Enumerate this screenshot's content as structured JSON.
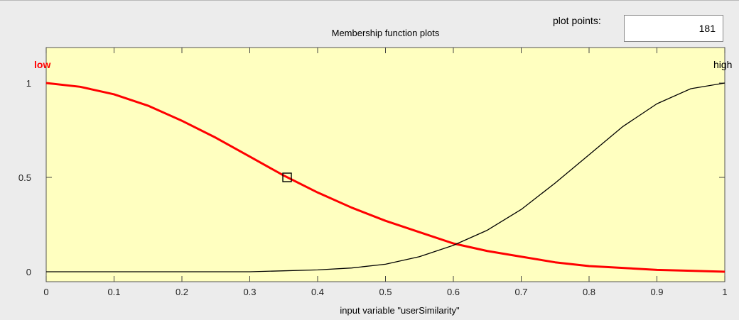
{
  "window": {
    "plot_points_label": "plot points:",
    "plot_points_value": "181"
  },
  "chart_data": {
    "type": "line",
    "title": "Membership function plots",
    "xlabel": "input variable \"userSimilarity\"",
    "ylabel": "",
    "xlim": [
      0,
      1
    ],
    "ylim": [
      0,
      1
    ],
    "xticks": [
      "0",
      "0.1",
      "0.2",
      "0.3",
      "0.4",
      "0.5",
      "0.6",
      "0.7",
      "0.8",
      "0.9",
      "1"
    ],
    "yticks": [
      "0",
      "0.5",
      "1"
    ],
    "background": "#ffffc0",
    "series": [
      {
        "name": "low",
        "color": "#ff0000",
        "x": [
          0,
          0.05,
          0.1,
          0.15,
          0.2,
          0.25,
          0.3,
          0.35,
          0.4,
          0.45,
          0.5,
          0.55,
          0.6,
          0.65,
          0.7,
          0.75,
          0.8,
          0.85,
          0.9,
          0.95,
          1
        ],
        "y": [
          1.0,
          0.98,
          0.94,
          0.88,
          0.8,
          0.71,
          0.61,
          0.51,
          0.42,
          0.34,
          0.27,
          0.21,
          0.15,
          0.11,
          0.08,
          0.05,
          0.03,
          0.02,
          0.01,
          0.005,
          0.0
        ]
      },
      {
        "name": "high",
        "color": "#000000",
        "x": [
          0,
          0.05,
          0.1,
          0.15,
          0.2,
          0.25,
          0.3,
          0.35,
          0.4,
          0.45,
          0.5,
          0.55,
          0.6,
          0.65,
          0.7,
          0.75,
          0.8,
          0.85,
          0.9,
          0.95,
          1
        ],
        "y": [
          0.0,
          0.0,
          0.0,
          0.0,
          0.0,
          0.0,
          0.0,
          0.005,
          0.01,
          0.02,
          0.04,
          0.08,
          0.14,
          0.22,
          0.33,
          0.47,
          0.62,
          0.77,
          0.89,
          0.97,
          1.0
        ]
      }
    ],
    "marker": {
      "x": 0.355,
      "y": 0.5
    }
  }
}
